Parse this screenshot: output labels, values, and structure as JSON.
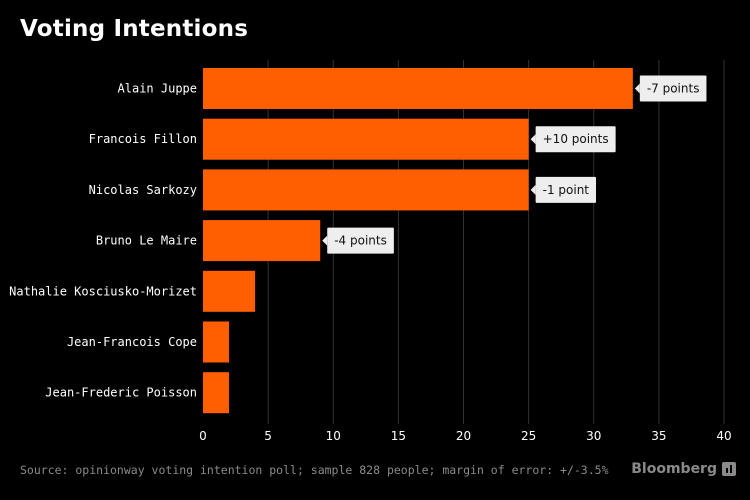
{
  "title": "Voting Intentions",
  "source": "Source: opinionway voting intention poll; sample 828 people; margin of error: +/-3.5%",
  "brand": {
    "name": "Bloomberg",
    "icon": "bloomberg-logo-icon"
  },
  "colors": {
    "bar": "#ff5f00",
    "background": "#000000",
    "grid": "#333333",
    "callout_bg": "#eeeeee",
    "text": "#ffffff",
    "muted": "#8a8a8a"
  },
  "chart_data": {
    "type": "bar",
    "orientation": "horizontal",
    "title": "Voting Intentions",
    "categories": [
      "Alain Juppe",
      "Francois Fillon",
      "Nicolas Sarkozy",
      "Bruno Le Maire",
      "Nathalie Kosciusko-Morizet",
      "Jean-Francois Cope",
      "Jean-Frederic Poisson"
    ],
    "values": [
      33,
      25,
      25,
      9,
      4,
      2,
      2
    ],
    "annotations": [
      "-7 points",
      "+10 points",
      "-1 point",
      "-4 points",
      null,
      null,
      null
    ],
    "xlim": [
      0,
      40
    ],
    "xticks": [
      0,
      5,
      10,
      15,
      20,
      25,
      30,
      35,
      40
    ],
    "grid": true,
    "xlabel": "",
    "ylabel": ""
  }
}
